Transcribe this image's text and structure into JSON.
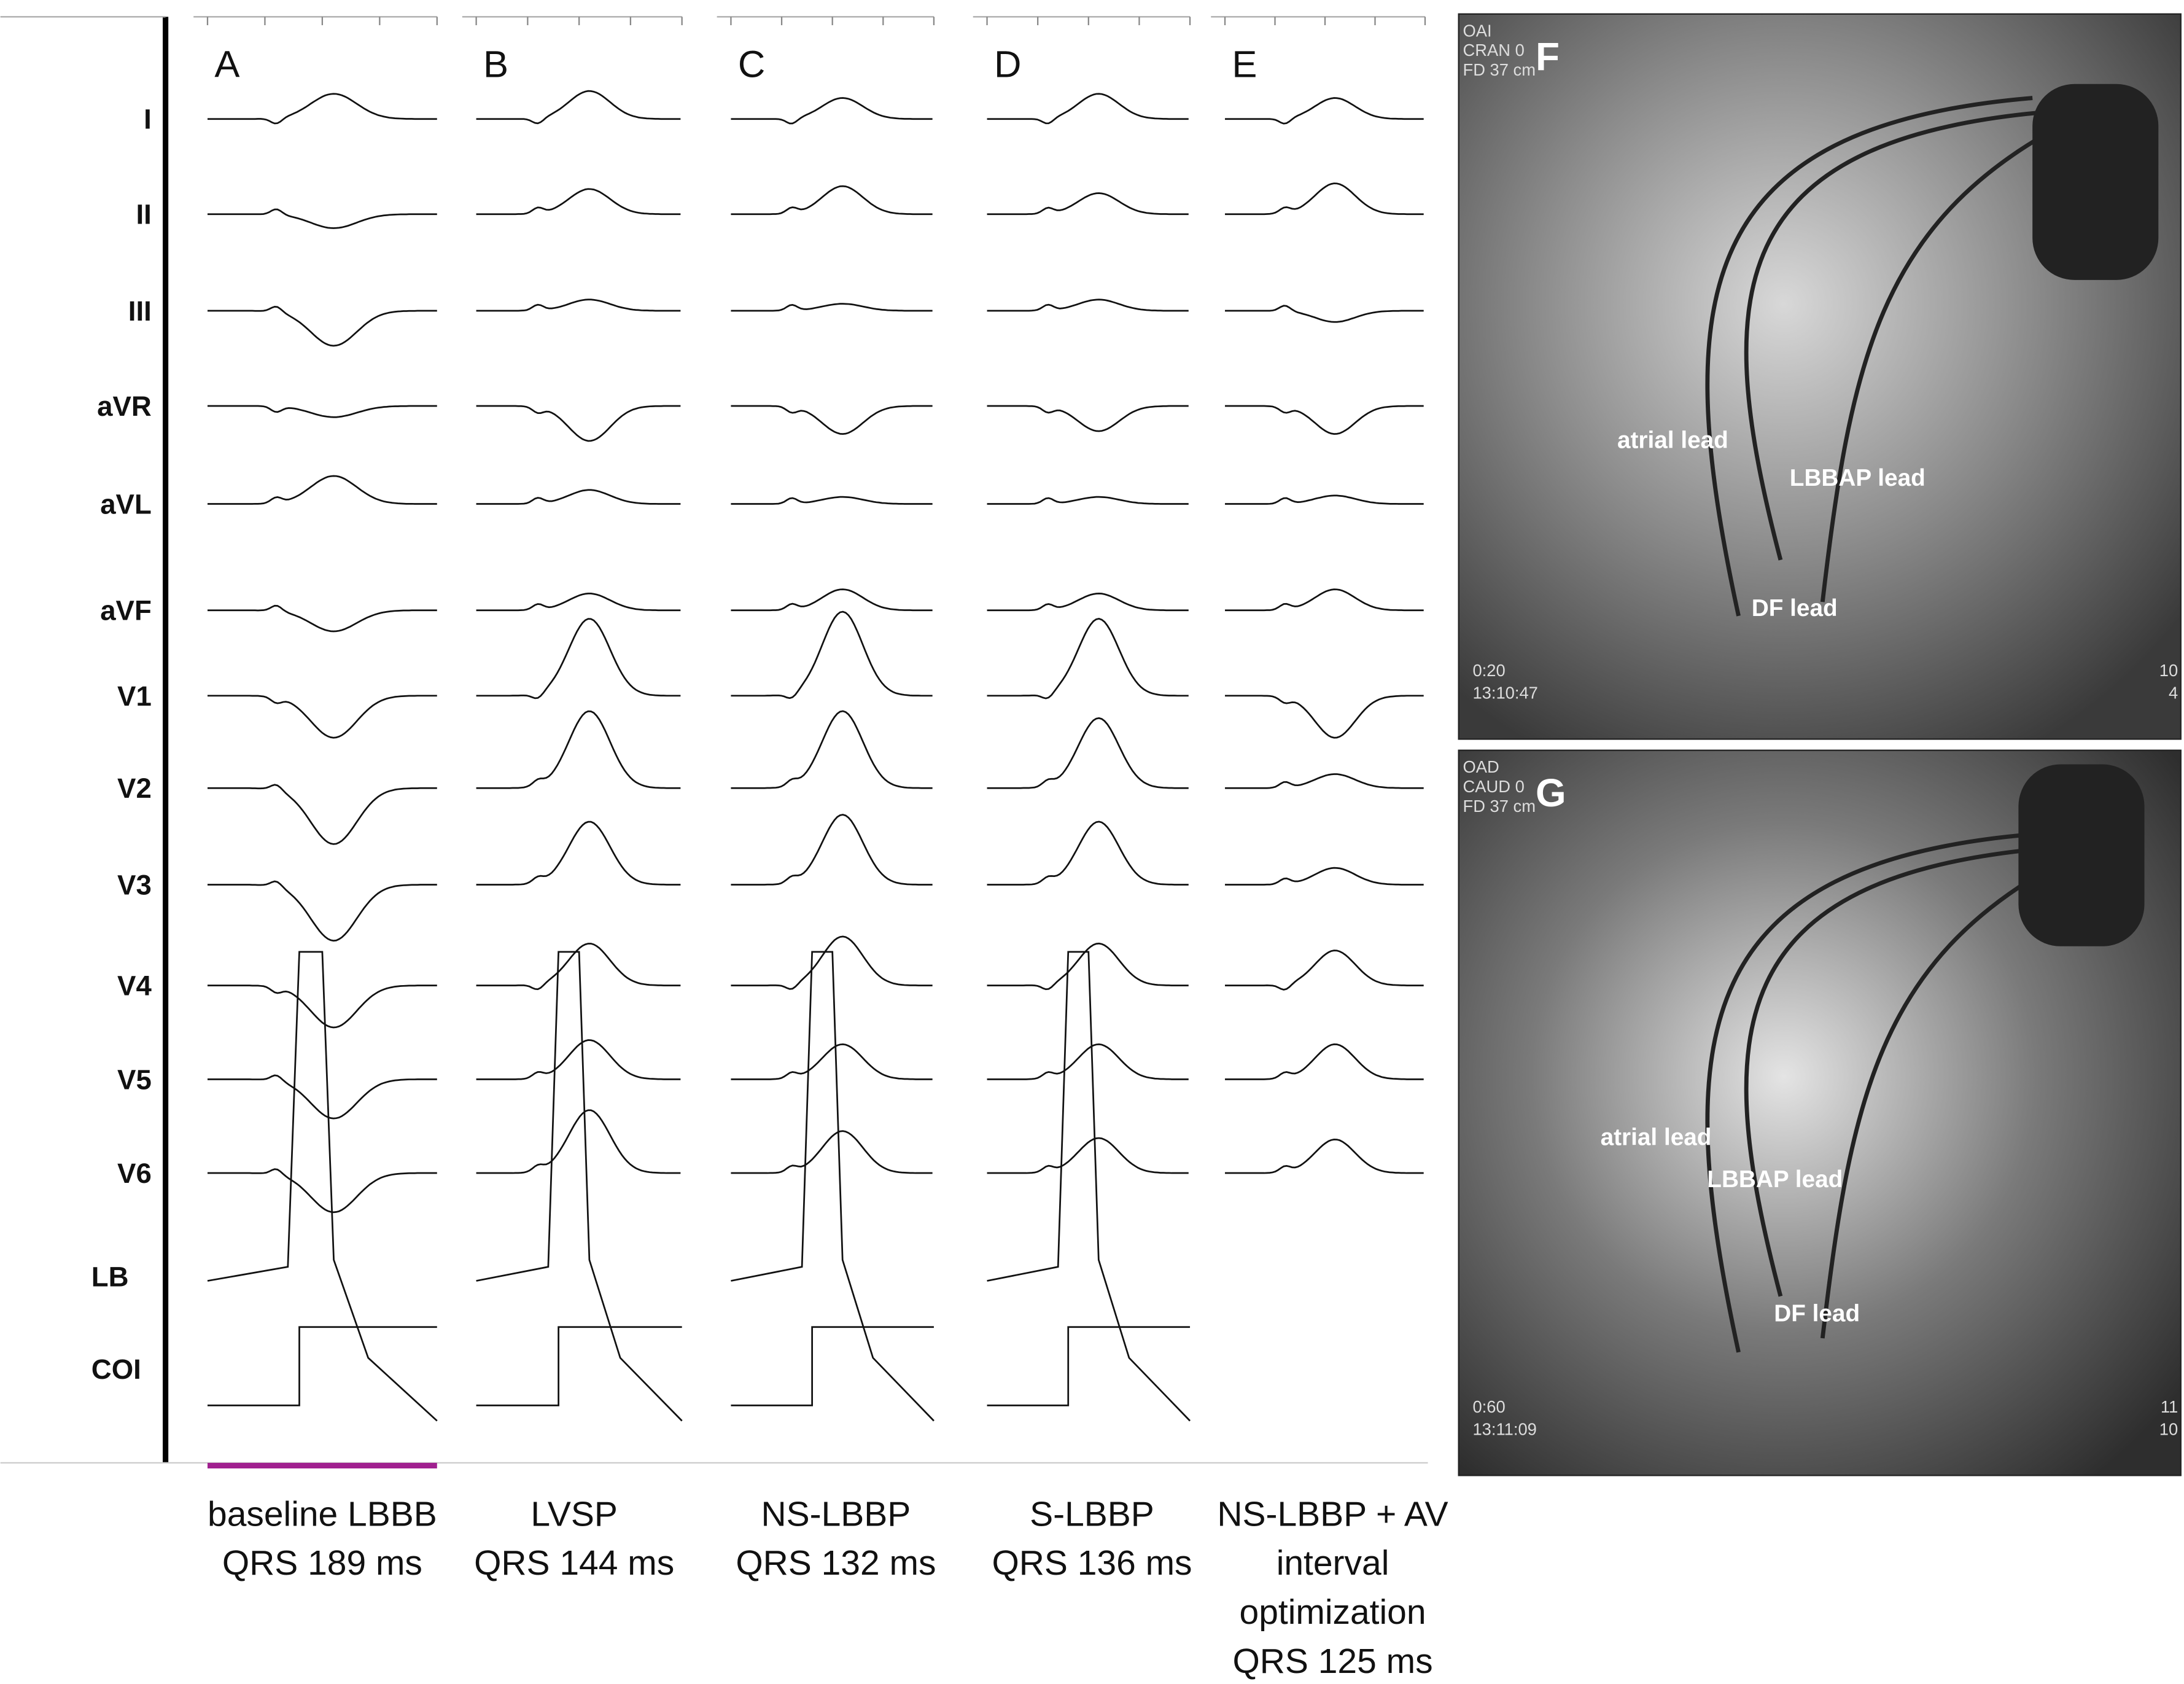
{
  "leads": [
    "I",
    "II",
    "III",
    "aVR",
    "aVL",
    "aVF",
    "V1",
    "V2",
    "V3",
    "V4",
    "V5",
    "V6",
    "LB",
    "COI"
  ],
  "panels": [
    {
      "letter": "A",
      "caption": [
        "baseline LBBB",
        "QRS 189 ms"
      ]
    },
    {
      "letter": "B",
      "caption": [
        "LVSP",
        "QRS 144 ms"
      ]
    },
    {
      "letter": "C",
      "caption": [
        "NS-LBBP",
        "QRS 132 ms"
      ]
    },
    {
      "letter": "D",
      "caption": [
        "S-LBBP",
        "QRS 136 ms"
      ]
    },
    {
      "letter": "E",
      "caption": [
        "NS-LBBP + AV",
        "interval",
        "optimization",
        "QRS 125 ms"
      ]
    }
  ],
  "images": [
    {
      "letter": "F",
      "overlay": [
        "OAI",
        "CRAN 0",
        "FD 37 cm"
      ],
      "labels": [
        "atrial lead",
        "LBBAP lead",
        "DF lead"
      ],
      "footer": [
        "0:20",
        "13:10:47"
      ],
      "edge": [
        "10",
        "4"
      ]
    },
    {
      "letter": "G",
      "overlay": [
        "OAD",
        "CAUD 0",
        "FD 37 cm"
      ],
      "labels": [
        "atrial lead",
        "LBBAP lead",
        "DF lead"
      ],
      "footer": [
        "0:60",
        "13:11:09"
      ],
      "edge": [
        "11",
        "10"
      ]
    }
  ]
}
